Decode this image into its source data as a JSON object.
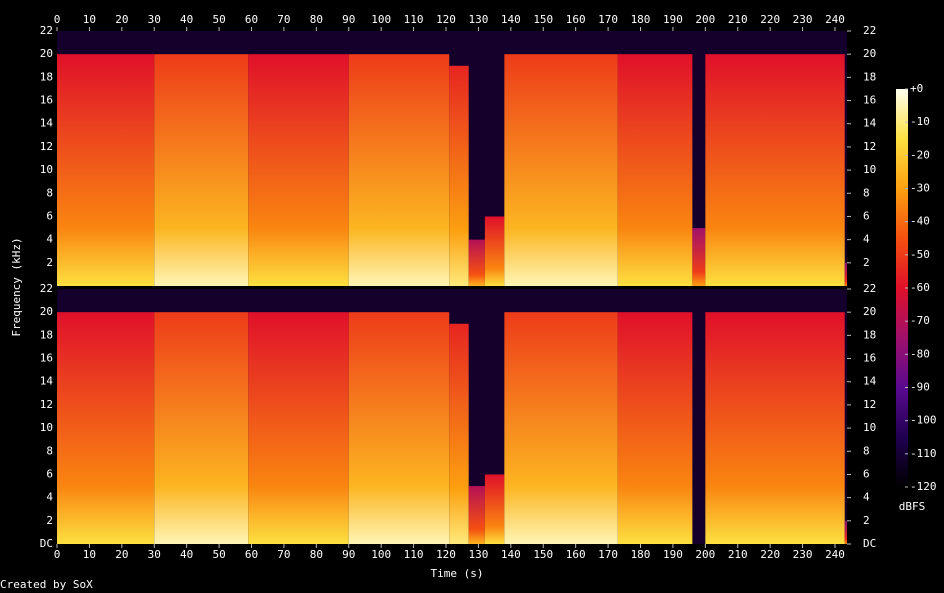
{
  "chart_data": {
    "type": "spectrogram",
    "x_label": "Time (s)",
    "y_label": "Frequency (kHz)",
    "credit": "Created by SoX",
    "xlim": [
      0,
      243.7
    ],
    "xticks": [
      0,
      10,
      20,
      30,
      40,
      50,
      60,
      70,
      80,
      90,
      100,
      110,
      120,
      130,
      140,
      150,
      160,
      170,
      180,
      190,
      200,
      210,
      220,
      230,
      240
    ],
    "channels": [
      {
        "ylim": [
          0,
          22
        ],
        "yticks": [
          2,
          4,
          6,
          8,
          10,
          12,
          14,
          16,
          18,
          20,
          22
        ],
        "start": [
          0,
          30,
          59,
          90,
          121,
          127,
          132,
          138,
          173,
          196,
          200,
          243
        ],
        "end": [
          30,
          59,
          90,
          121,
          127,
          132,
          138,
          173,
          196,
          200,
          243,
          243.7
        ],
        "cutoff": [
          20,
          20,
          20,
          20,
          19,
          4,
          6,
          20,
          20,
          5,
          20,
          2
        ],
        "level": [
          -60,
          -50,
          -60,
          -50,
          -55,
          -70,
          -60,
          -50,
          -60,
          -75,
          -60,
          -80
        ]
      },
      {
        "ylim": [
          0,
          22
        ],
        "yticks": [
          {
            "value": 0,
            "label": "DC"
          },
          2,
          4,
          6,
          8,
          10,
          12,
          14,
          16,
          18,
          20,
          22
        ],
        "start": [
          0,
          30,
          59,
          90,
          121,
          127,
          132,
          138,
          173,
          196,
          200,
          243
        ],
        "end": [
          30,
          59,
          90,
          121,
          127,
          132,
          138,
          173,
          196,
          200,
          243,
          243.7
        ],
        "cutoff": [
          20,
          20,
          20,
          20,
          19,
          5,
          6,
          20,
          20,
          0,
          20,
          2
        ],
        "level": [
          -60,
          -50,
          -60,
          -50,
          -55,
          -70,
          -60,
          -50,
          -60,
          -100,
          -60,
          -80
        ]
      }
    ],
    "colorbar": {
      "label": "dBFS",
      "lim": [
        -120,
        0
      ],
      "ticks": [
        {
          "value": 0,
          "label": "+0"
        },
        -10,
        -20,
        -30,
        -40,
        -50,
        -60,
        -70,
        -80,
        -90,
        -100,
        -110,
        -120
      ]
    }
  }
}
